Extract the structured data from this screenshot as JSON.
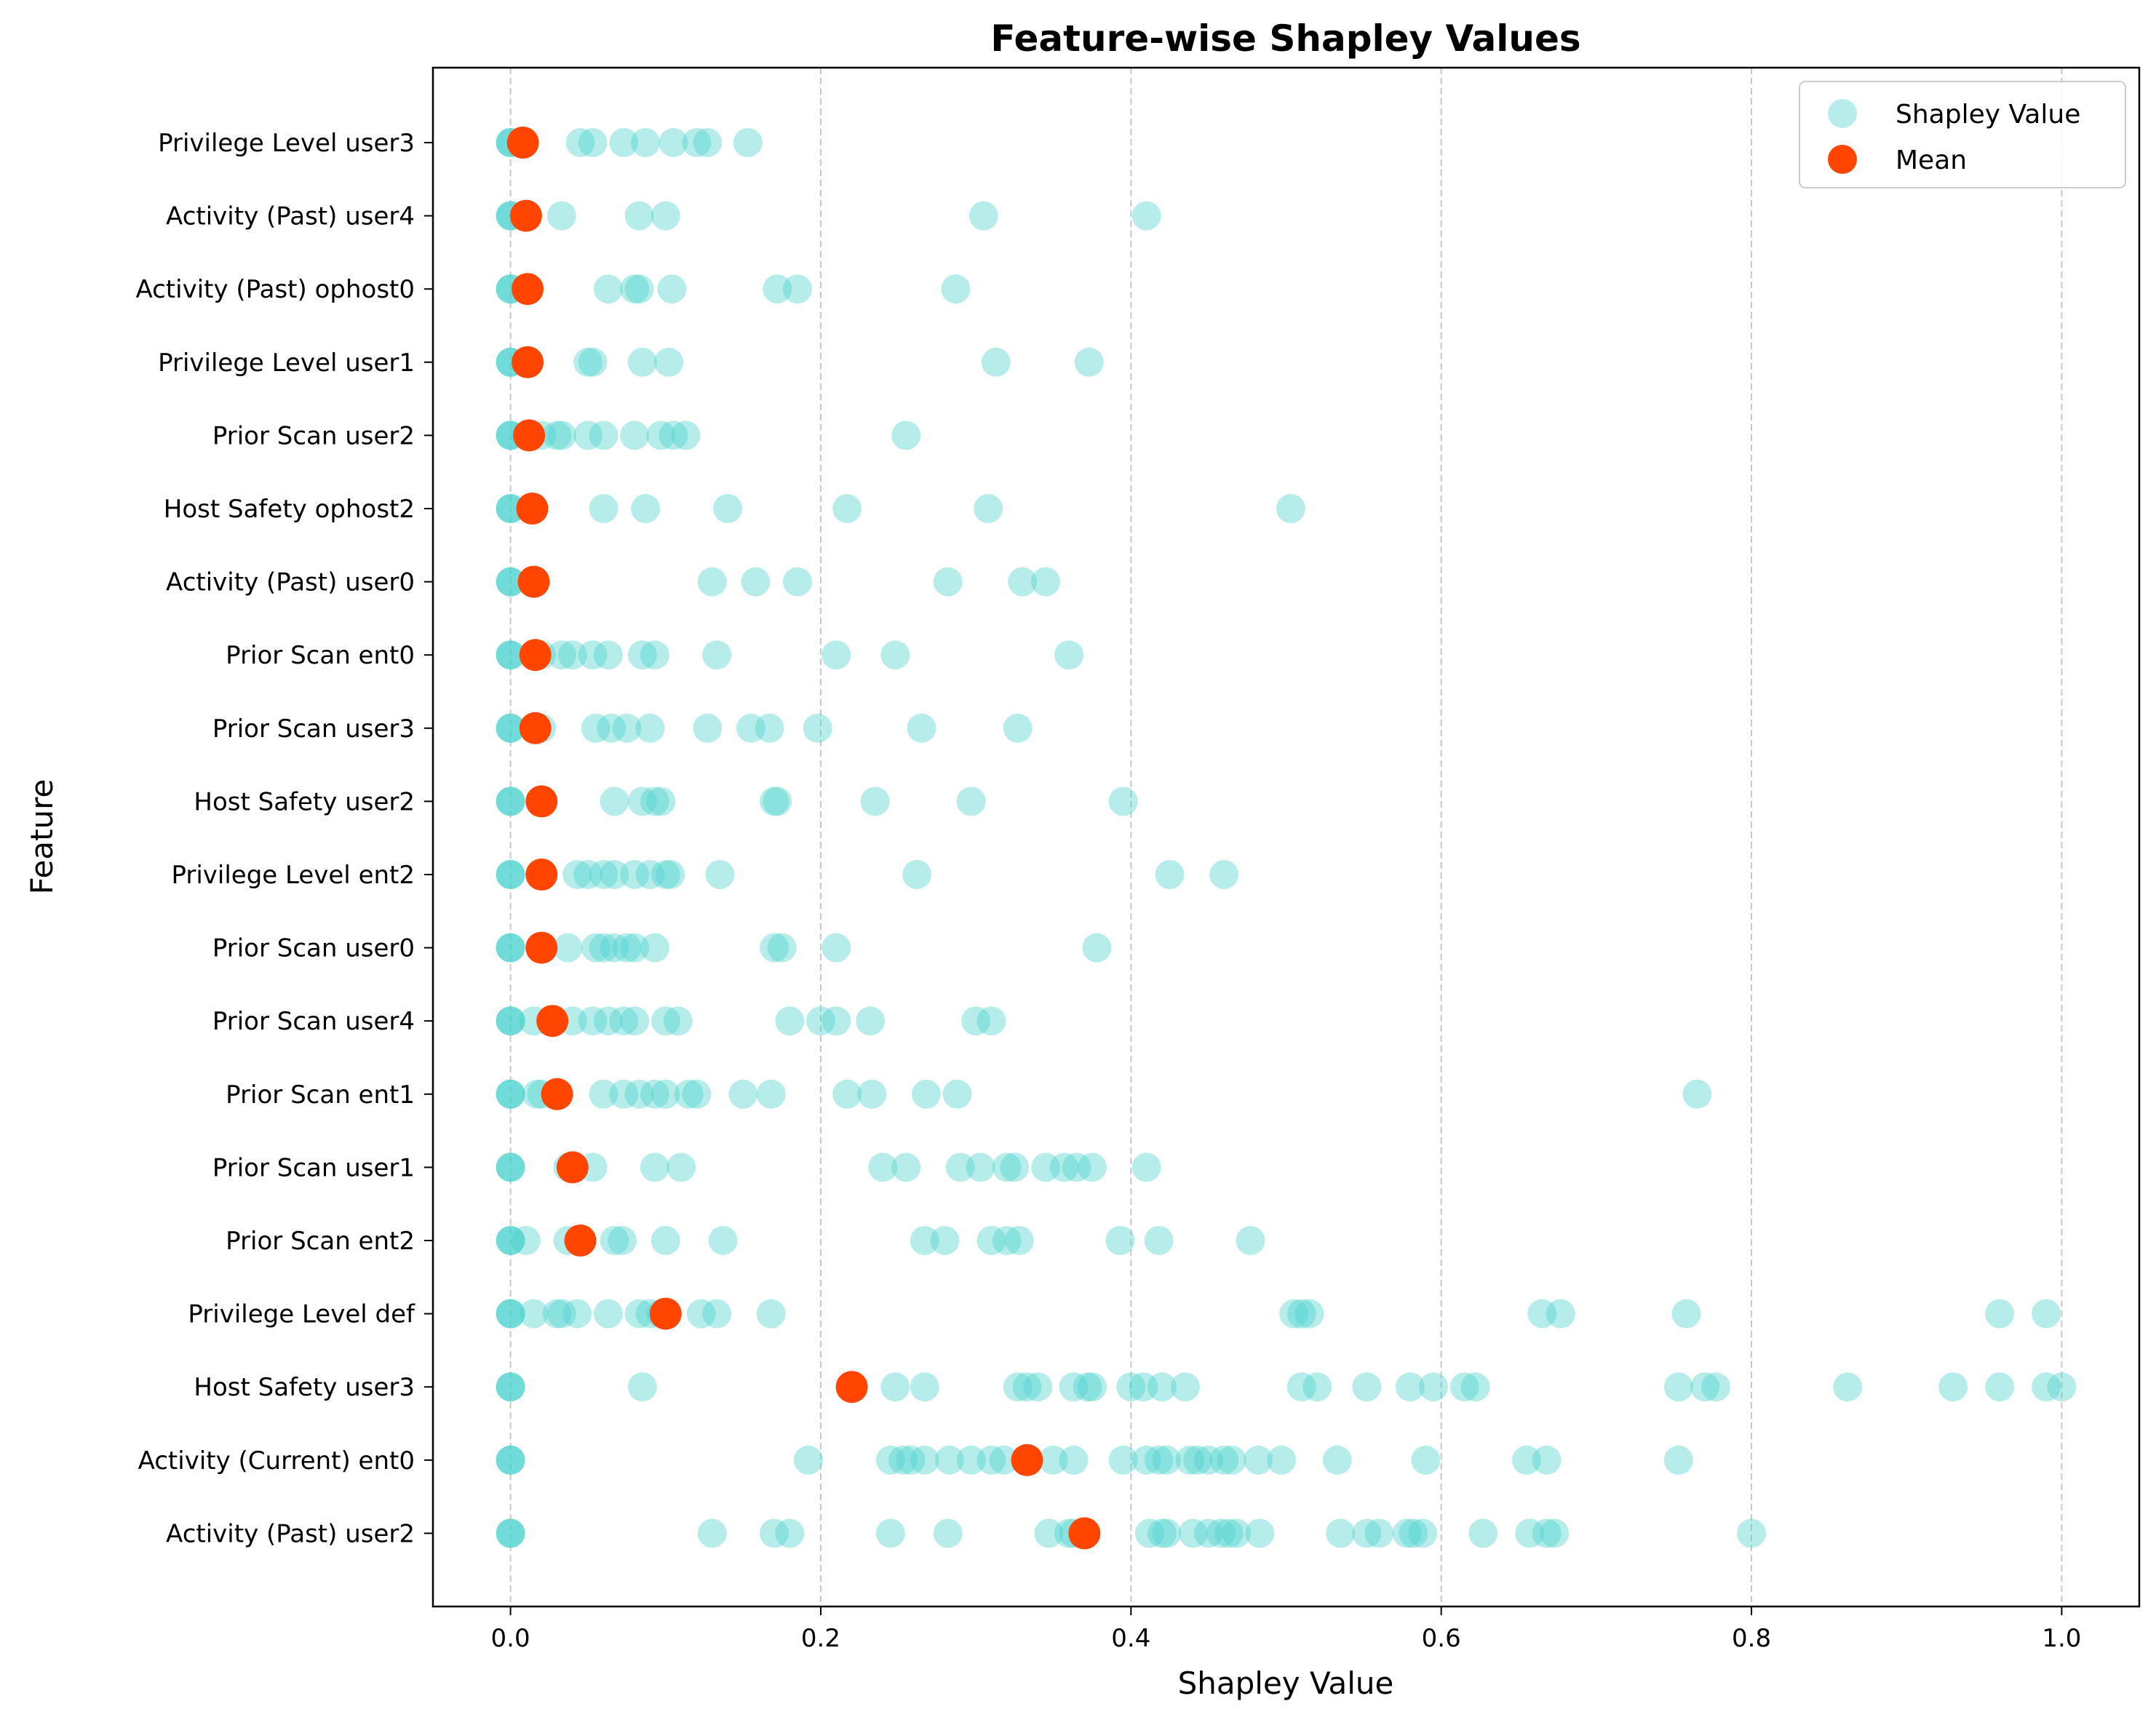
{
  "colors": {
    "shapley": "#48D1CC",
    "mean": "#FF4500",
    "grid": "#b0b0b0"
  },
  "chart_data": {
    "type": "scatter",
    "title": "Feature-wise Shapley Values",
    "xlabel": "Shapley Value",
    "ylabel": "Feature",
    "xlim": [
      -0.05,
      1.05
    ],
    "xticks": [
      "0.0",
      "0.2",
      "0.4",
      "0.6",
      "0.8",
      "1.0"
    ],
    "xtick_values": [
      0.0,
      0.2,
      0.4,
      0.6,
      0.8,
      1.0
    ],
    "grid": "x, dashed",
    "legend": {
      "placement": "top-right",
      "entries": [
        "Shapley Value",
        "Mean"
      ]
    },
    "features": [
      {
        "name": "Privilege Level user3",
        "mean": 0.008,
        "values": [
          0.0,
          0.0,
          0.0,
          0.045,
          0.053,
          0.073,
          0.087,
          0.105,
          0.12,
          0.127,
          0.153
        ]
      },
      {
        "name": "Activity (Past) user4",
        "mean": 0.01,
        "values": [
          0.0,
          0.0,
          0.0,
          0.033,
          0.083,
          0.1,
          0.305,
          0.41
        ]
      },
      {
        "name": "Activity (Past) ophost0",
        "mean": 0.011,
        "values": [
          0.0,
          0.0,
          0.0,
          0.063,
          0.08,
          0.083,
          0.104,
          0.172,
          0.185,
          0.287
        ]
      },
      {
        "name": "Privilege Level user1",
        "mean": 0.011,
        "values": [
          0.0,
          0.0,
          0.0,
          0.05,
          0.053,
          0.085,
          0.102,
          0.313,
          0.373
        ]
      },
      {
        "name": "Prior Scan user2",
        "mean": 0.012,
        "values": [
          0.0,
          0.0,
          0.0,
          0.01,
          0.02,
          0.03,
          0.033,
          0.05,
          0.06,
          0.08,
          0.097,
          0.105,
          0.113,
          0.255
        ]
      },
      {
        "name": "Host Safety ophost2",
        "mean": 0.014,
        "values": [
          0.0,
          0.0,
          0.0,
          0.06,
          0.087,
          0.14,
          0.217,
          0.308,
          0.503
        ]
      },
      {
        "name": "Activity (Past) user0",
        "mean": 0.015,
        "values": [
          0.0,
          0.0,
          0.0,
          0.13,
          0.158,
          0.185,
          0.282,
          0.33,
          0.345
        ]
      },
      {
        "name": "Prior Scan ent0",
        "mean": 0.016,
        "values": [
          0.0,
          0.0,
          0.0,
          0.02,
          0.033,
          0.04,
          0.053,
          0.063,
          0.085,
          0.093,
          0.133,
          0.21,
          0.248,
          0.36
        ]
      },
      {
        "name": "Prior Scan user3",
        "mean": 0.016,
        "values": [
          0.0,
          0.0,
          0.0,
          0.02,
          0.055,
          0.065,
          0.075,
          0.09,
          0.127,
          0.155,
          0.167,
          0.198,
          0.265,
          0.327
        ]
      },
      {
        "name": "Host Safety user2",
        "mean": 0.02,
        "values": [
          0.0,
          0.0,
          0.0,
          0.067,
          0.085,
          0.093,
          0.097,
          0.17,
          0.172,
          0.235,
          0.297,
          0.395
        ]
      },
      {
        "name": "Privilege Level ent2",
        "mean": 0.02,
        "values": [
          0.0,
          0.0,
          0.0,
          0.043,
          0.05,
          0.06,
          0.067,
          0.08,
          0.09,
          0.1,
          0.103,
          0.135,
          0.262,
          0.425,
          0.46
        ]
      },
      {
        "name": "Prior Scan user0",
        "mean": 0.02,
        "values": [
          0.0,
          0.0,
          0.0,
          0.037,
          0.055,
          0.06,
          0.067,
          0.075,
          0.08,
          0.093,
          0.17,
          0.175,
          0.21,
          0.378
        ]
      },
      {
        "name": "Prior Scan user4",
        "mean": 0.027,
        "values": [
          0.0,
          0.0,
          0.0,
          0.015,
          0.04,
          0.053,
          0.063,
          0.073,
          0.08,
          0.1,
          0.108,
          0.18,
          0.2,
          0.21,
          0.232,
          0.3,
          0.31
        ]
      },
      {
        "name": "Prior Scan ent1",
        "mean": 0.03,
        "values": [
          0.0,
          0.0,
          0.0,
          0.017,
          0.02,
          0.06,
          0.073,
          0.083,
          0.093,
          0.1,
          0.115,
          0.12,
          0.15,
          0.168,
          0.217,
          0.233,
          0.268,
          0.288,
          0.765
        ]
      },
      {
        "name": "Prior Scan user1",
        "mean": 0.04,
        "values": [
          0.0,
          0.0,
          0.0,
          0.037,
          0.053,
          0.093,
          0.11,
          0.24,
          0.255,
          0.29,
          0.303,
          0.32,
          0.325,
          0.345,
          0.357,
          0.365,
          0.375,
          0.41
        ]
      },
      {
        "name": "Prior Scan ent2",
        "mean": 0.045,
        "values": [
          0.0,
          0.0,
          0.0,
          0.01,
          0.037,
          0.067,
          0.072,
          0.1,
          0.137,
          0.267,
          0.28,
          0.31,
          0.32,
          0.328,
          0.393,
          0.418,
          0.477
        ]
      },
      {
        "name": "Privilege Level def",
        "mean": 0.1,
        "values": [
          0.0,
          0.0,
          0.0,
          0.015,
          0.03,
          0.033,
          0.043,
          0.063,
          0.083,
          0.09,
          0.097,
          0.123,
          0.133,
          0.168,
          0.505,
          0.51,
          0.515,
          0.665,
          0.677,
          0.758,
          0.96,
          0.99
        ]
      },
      {
        "name": "Host Safety user3",
        "mean": 0.22,
        "values": [
          0.0,
          0.0,
          0.0,
          0.085,
          0.248,
          0.267,
          0.327,
          0.333,
          0.34,
          0.363,
          0.372,
          0.375,
          0.4,
          0.408,
          0.42,
          0.435,
          0.51,
          0.52,
          0.552,
          0.58,
          0.595,
          0.615,
          0.622,
          0.753,
          0.77,
          0.777,
          0.862,
          0.93,
          0.96,
          0.99,
          1.0
        ]
      },
      {
        "name": "Activity (Current) ent0",
        "mean": 0.333,
        "values": [
          0.0,
          0.0,
          0.0,
          0.192,
          0.245,
          0.253,
          0.258,
          0.267,
          0.283,
          0.297,
          0.31,
          0.318,
          0.35,
          0.363,
          0.395,
          0.41,
          0.418,
          0.423,
          0.438,
          0.443,
          0.45,
          0.46,
          0.465,
          0.482,
          0.497,
          0.533,
          0.59,
          0.655,
          0.668,
          0.753
        ]
      },
      {
        "name": "Activity (Past) user2",
        "mean": 0.37,
        "values": [
          0.0,
          0.0,
          0.0,
          0.13,
          0.17,
          0.18,
          0.245,
          0.282,
          0.347,
          0.36,
          0.363,
          0.412,
          0.42,
          0.423,
          0.44,
          0.45,
          0.458,
          0.463,
          0.468,
          0.483,
          0.535,
          0.552,
          0.56,
          0.578,
          0.582,
          0.588,
          0.627,
          0.657,
          0.668,
          0.673,
          0.8
        ]
      }
    ]
  }
}
